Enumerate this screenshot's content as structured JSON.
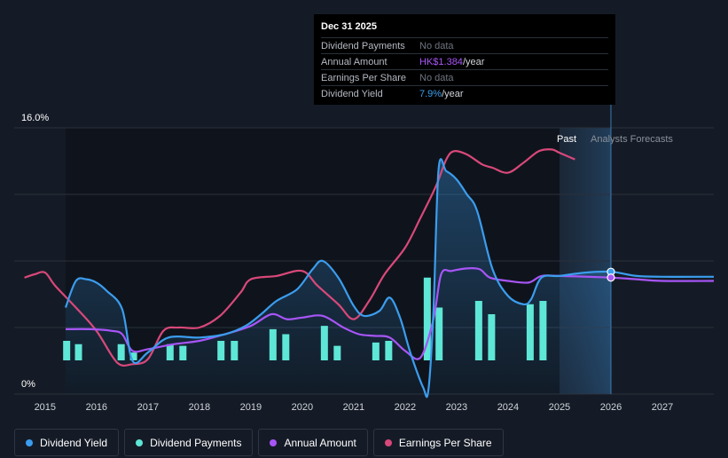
{
  "colors": {
    "dividend_yield": "#3b9dee",
    "dividend_payments": "#5ee6d6",
    "annual_amount": "#a855f7",
    "earnings_per_share": "#d9487a",
    "background": "#151b26"
  },
  "tooltip": {
    "date": "Dec 31 2025",
    "rows": [
      {
        "label": "Dividend Payments",
        "value": "No data"
      },
      {
        "label": "Annual Amount",
        "value": "HK$1.384",
        "unit": "/year"
      },
      {
        "label": "Earnings Per Share",
        "value": "No data"
      },
      {
        "label": "Dividend Yield",
        "value": "7.9%",
        "unit": "/year"
      }
    ]
  },
  "legend": [
    {
      "label": "Dividend Yield",
      "color_key": "dividend_yield"
    },
    {
      "label": "Dividend Payments",
      "color_key": "dividend_payments"
    },
    {
      "label": "Annual Amount",
      "color_key": "annual_amount"
    },
    {
      "label": "Earnings Per Share",
      "color_key": "earnings_per_share"
    }
  ],
  "chart_data": {
    "type": "line",
    "title": "",
    "y_axis_labels": [
      "16.0%",
      "0%"
    ],
    "ylim": [
      0,
      16
    ],
    "xlim": [
      2014.4,
      2028.0
    ],
    "x_ticks": [
      "2015",
      "2016",
      "2017",
      "2018",
      "2019",
      "2020",
      "2021",
      "2022",
      "2023",
      "2024",
      "2025",
      "2026",
      "2027"
    ],
    "x_tick_values": [
      2015,
      2016,
      2017,
      2018,
      2019,
      2020,
      2021,
      2022,
      2023,
      2024,
      2025,
      2026,
      2027
    ],
    "past_label": "Past",
    "forecast_label": "Analysts Forecasts",
    "past_end": 2025.0,
    "forecast_start": 2025.4,
    "highlight_x": 2026.0,
    "series": [
      {
        "name": "Dividend Yield",
        "key": "dividend_yield",
        "points": [
          [
            2015.4,
            5.2
          ],
          [
            2015.6,
            6.8
          ],
          [
            2015.8,
            6.9
          ],
          [
            2016.0,
            6.7
          ],
          [
            2016.2,
            6.2
          ],
          [
            2016.5,
            5.1
          ],
          [
            2016.7,
            2.0
          ],
          [
            2017.0,
            2.5
          ],
          [
            2017.4,
            3.4
          ],
          [
            2018.0,
            3.4
          ],
          [
            2018.5,
            3.6
          ],
          [
            2018.9,
            4.1
          ],
          [
            2019.2,
            4.8
          ],
          [
            2019.5,
            5.6
          ],
          [
            2019.9,
            6.3
          ],
          [
            2020.2,
            7.5
          ],
          [
            2020.4,
            8.0
          ],
          [
            2020.7,
            7.0
          ],
          [
            2021.0,
            5.3
          ],
          [
            2021.2,
            4.7
          ],
          [
            2021.5,
            5.0
          ],
          [
            2021.7,
            5.8
          ],
          [
            2021.9,
            4.6
          ],
          [
            2022.1,
            2.5
          ],
          [
            2022.35,
            0.4
          ],
          [
            2022.45,
            0.2
          ],
          [
            2022.55,
            5.0
          ],
          [
            2022.65,
            13.5
          ],
          [
            2022.8,
            13.4
          ],
          [
            2023.0,
            12.9
          ],
          [
            2023.2,
            12.0
          ],
          [
            2023.4,
            11.0
          ],
          [
            2023.7,
            7.5
          ],
          [
            2024.0,
            5.9
          ],
          [
            2024.3,
            5.4
          ],
          [
            2024.45,
            5.7
          ],
          [
            2024.65,
            7.0
          ],
          [
            2025.0,
            7.1
          ],
          [
            2025.5,
            7.3
          ],
          [
            2026.0,
            7.35
          ],
          [
            2026.5,
            7.1
          ],
          [
            2027.0,
            7.05
          ],
          [
            2028.0,
            7.05
          ]
        ]
      },
      {
        "name": "Annual Amount",
        "key": "annual_amount",
        "points": [
          [
            2015.4,
            3.9
          ],
          [
            2015.9,
            3.9
          ],
          [
            2016.3,
            3.8
          ],
          [
            2016.5,
            3.6
          ],
          [
            2016.7,
            2.6
          ],
          [
            2017.0,
            2.7
          ],
          [
            2017.5,
            3.0
          ],
          [
            2018.0,
            3.2
          ],
          [
            2018.5,
            3.6
          ],
          [
            2019.0,
            4.1
          ],
          [
            2019.4,
            4.8
          ],
          [
            2019.7,
            4.5
          ],
          [
            2020.0,
            4.6
          ],
          [
            2020.4,
            4.7
          ],
          [
            2020.8,
            4.0
          ],
          [
            2021.1,
            3.6
          ],
          [
            2021.4,
            3.5
          ],
          [
            2021.7,
            3.4
          ],
          [
            2022.0,
            2.6
          ],
          [
            2022.3,
            2.2
          ],
          [
            2022.55,
            4.5
          ],
          [
            2022.7,
            7.2
          ],
          [
            2022.9,
            7.4
          ],
          [
            2023.2,
            7.55
          ],
          [
            2023.45,
            7.5
          ],
          [
            2023.65,
            7.0
          ],
          [
            2024.0,
            6.8
          ],
          [
            2024.4,
            6.7
          ],
          [
            2024.65,
            7.1
          ],
          [
            2025.0,
            7.1
          ],
          [
            2026.0,
            7.0
          ],
          [
            2026.5,
            6.9
          ],
          [
            2027.0,
            6.8
          ],
          [
            2028.0,
            6.8
          ]
        ]
      },
      {
        "name": "Earnings Per Share",
        "key": "earnings_per_share",
        "points": [
          [
            2014.6,
            7.0
          ],
          [
            2014.8,
            7.2
          ],
          [
            2015.0,
            7.3
          ],
          [
            2015.2,
            6.5
          ],
          [
            2015.6,
            5.2
          ],
          [
            2016.0,
            3.8
          ],
          [
            2016.4,
            1.9
          ],
          [
            2016.7,
            1.8
          ],
          [
            2017.0,
            2.1
          ],
          [
            2017.3,
            3.8
          ],
          [
            2017.6,
            4.0
          ],
          [
            2018.0,
            4.0
          ],
          [
            2018.4,
            4.7
          ],
          [
            2018.8,
            6.1
          ],
          [
            2019.0,
            6.9
          ],
          [
            2019.5,
            7.1
          ],
          [
            2020.0,
            7.4
          ],
          [
            2020.3,
            6.5
          ],
          [
            2020.7,
            5.4
          ],
          [
            2021.0,
            4.5
          ],
          [
            2021.3,
            5.6
          ],
          [
            2021.6,
            7.2
          ],
          [
            2022.0,
            8.8
          ],
          [
            2022.3,
            10.6
          ],
          [
            2022.6,
            12.5
          ],
          [
            2022.8,
            14.1
          ],
          [
            2022.95,
            14.6
          ],
          [
            2023.2,
            14.4
          ],
          [
            2023.5,
            13.8
          ],
          [
            2023.7,
            13.6
          ],
          [
            2024.0,
            13.3
          ],
          [
            2024.3,
            13.9
          ],
          [
            2024.6,
            14.6
          ],
          [
            2024.85,
            14.7
          ],
          [
            2025.0,
            14.5
          ],
          [
            2025.3,
            14.1
          ]
        ]
      },
      {
        "name": "Dividend Payments",
        "key": "dividend_payments",
        "type": "bar",
        "bars": [
          [
            2015.42,
            3.2
          ],
          [
            2015.65,
            3.0
          ],
          [
            2016.48,
            3.0
          ],
          [
            2016.72,
            2.5
          ],
          [
            2017.43,
            3.0
          ],
          [
            2017.68,
            2.9
          ],
          [
            2018.42,
            3.2
          ],
          [
            2018.68,
            3.2
          ],
          [
            2019.43,
            3.9
          ],
          [
            2019.68,
            3.6
          ],
          [
            2020.43,
            4.1
          ],
          [
            2020.68,
            2.9
          ],
          [
            2021.43,
            3.1
          ],
          [
            2021.68,
            3.2
          ],
          [
            2022.43,
            7.0
          ],
          [
            2022.66,
            5.2
          ],
          [
            2023.43,
            5.6
          ],
          [
            2023.68,
            4.8
          ],
          [
            2024.43,
            5.4
          ],
          [
            2024.68,
            5.6
          ]
        ]
      }
    ],
    "highlight_points": [
      {
        "series": "dividend_yield",
        "x": 2026.0,
        "y": 7.35
      },
      {
        "series": "annual_amount",
        "x": 2026.0,
        "y": 7.0
      }
    ]
  }
}
